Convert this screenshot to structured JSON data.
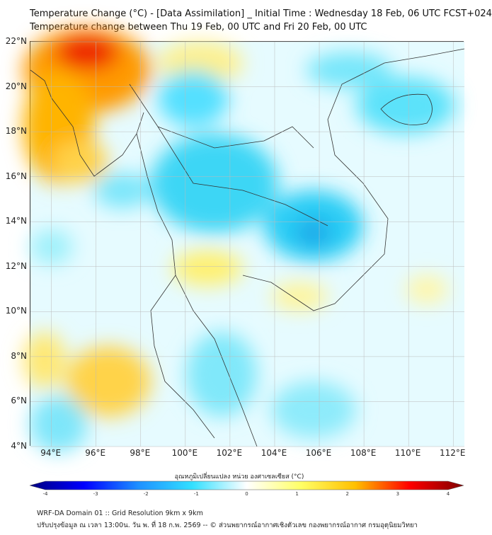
{
  "header": {
    "title_line1": "Temperature Change (°C) - [Data Assimilation] _ Initial Time : Wednesday 18 Feb, 06 UTC FCST+024",
    "title_line2": "Temperature change between Thu 19 Feb, 00 UTC and Fri 20 Feb, 00 UTC"
  },
  "map": {
    "lat_labels": [
      "22°N",
      "20°N",
      "18°N",
      "16°N",
      "14°N",
      "12°N",
      "10°N",
      "8°N",
      "6°N",
      "4°N"
    ],
    "lat_values": [
      22,
      20,
      18,
      16,
      14,
      12,
      10,
      8,
      6,
      4
    ],
    "lon_labels": [
      "94°E",
      "96°E",
      "98°E",
      "100°E",
      "102°E",
      "104°E",
      "106°E",
      "108°E",
      "110°E",
      "112°E"
    ],
    "lon_values": [
      94,
      96,
      98,
      100,
      102,
      104,
      106,
      108,
      110,
      112
    ],
    "lon_range": [
      93.06,
      112.5
    ],
    "lat_range": [
      4,
      22
    ]
  },
  "colorbar": {
    "label": "อุณหภูมิเปลี่ยนแปลง หน่วย องศาเซลเซียส (°C)",
    "ticks": [
      "-4",
      "-3",
      "-2",
      "-1",
      "0",
      "1",
      "2",
      "3",
      "4"
    ],
    "range": [
      -4,
      4
    ],
    "colors": [
      "#00007f",
      "#0000ff",
      "#1e90ff",
      "#33e0ff",
      "#ffffff",
      "#ffff66",
      "#ffc000",
      "#ff0000",
      "#7f0000"
    ]
  },
  "footer": {
    "line1": "WRF-DA Domain 01 :: Grid Resolution 9km x 9km",
    "line2": "ปรับปรุงข้อมูล ณ เวลา 13:00น. วัน พ. ที่ 18 ก.พ. 2569 -- © ส่วนพยากรณ์อากาศเชิงตัวเลข กองพยากรณ์อากาศ กรมอุตุนิยมวิทยา"
  }
}
